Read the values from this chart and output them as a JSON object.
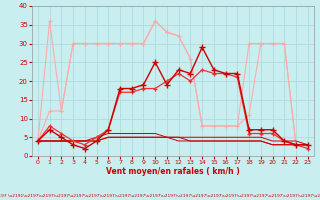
{
  "xlabel": "Vent moyen/en rafales ( km/h )",
  "background_color": "#c8eef0",
  "grid_color": "#aad8d8",
  "xlim": [
    -0.5,
    23.5
  ],
  "ylim": [
    0,
    40
  ],
  "yticks": [
    0,
    5,
    10,
    15,
    20,
    25,
    30,
    35,
    40
  ],
  "xticks": [
    0,
    1,
    2,
    3,
    4,
    5,
    6,
    7,
    8,
    9,
    10,
    11,
    12,
    13,
    14,
    15,
    16,
    17,
    18,
    19,
    20,
    21,
    22,
    23
  ],
  "hours": [
    0,
    1,
    2,
    3,
    4,
    5,
    6,
    7,
    8,
    9,
    10,
    11,
    12,
    13,
    14,
    15,
    16,
    17,
    18,
    19,
    20,
    21,
    22,
    23
  ],
  "line_dark1": [
    4,
    7,
    5,
    3,
    2,
    4,
    7,
    18,
    18,
    19,
    25,
    19,
    23,
    22,
    29,
    23,
    22,
    22,
    7,
    7,
    7,
    4,
    3,
    3
  ],
  "line_dark2": [
    4,
    8,
    6,
    4,
    3,
    5,
    7,
    17,
    17,
    18,
    18,
    20,
    22,
    20,
    23,
    22,
    22,
    21,
    6,
    6,
    6,
    4,
    3,
    2
  ],
  "line_dark3": [
    4,
    4,
    4,
    4,
    4,
    5,
    6,
    6,
    6,
    6,
    6,
    5,
    5,
    5,
    5,
    5,
    5,
    5,
    5,
    5,
    4,
    4,
    4,
    3
  ],
  "line_dark4": [
    4,
    4,
    4,
    4,
    4,
    4,
    5,
    5,
    5,
    5,
    5,
    5,
    5,
    4,
    4,
    4,
    4,
    4,
    4,
    4,
    3,
    3,
    3,
    3
  ],
  "line_dark5": [
    4,
    4,
    4,
    4,
    4,
    4,
    5,
    5,
    5,
    5,
    5,
    5,
    4,
    4,
    4,
    4,
    4,
    4,
    4,
    4,
    3,
    3,
    3,
    3
  ],
  "line_light1": [
    4,
    36,
    12,
    30,
    30,
    30,
    30,
    30,
    30,
    30,
    36,
    33,
    32,
    26,
    8,
    8,
    8,
    8,
    30,
    30,
    30,
    30,
    3,
    3
  ],
  "line_light2": [
    4,
    12,
    12,
    30,
    30,
    30,
    30,
    30,
    30,
    30,
    36,
    33,
    32,
    26,
    8,
    8,
    8,
    8,
    11,
    30,
    30,
    30,
    3,
    3
  ],
  "dark_red": "#cc0000",
  "light_red": "#ffaaaa",
  "mid_red": "#ee3333",
  "wind_arrows": "\\u2191\\u2191\\u2197\\u2197\\u2197\\u2197\\u2197\\u2197 \\u2197 \\u2191\\u2197\\u2197\\u2197\\u2197\\u2197\\u2197\\u2197\\u2197\\u2197\\u2197\\u2197\\u2197\\u2197\\u2197\\u2197\\u2197\\u2197\\u2197\\u2197\\u2197\\u2197\\u2197 \\u2197\\u2197\\u2197\\u2197\\u2197 \\u2197"
}
